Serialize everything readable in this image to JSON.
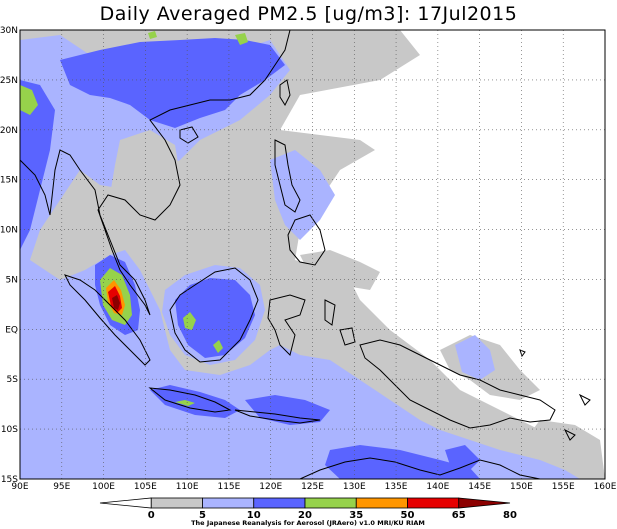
{
  "title": "Daily Averaged PM2.5 [ug/m3]: 17Jul2015",
  "map": {
    "lon_range": [
      90,
      160
    ],
    "lat_range": [
      -15,
      30
    ],
    "lon_ticks": [
      "90E",
      "95E",
      "100E",
      "105E",
      "110E",
      "115E",
      "120E",
      "125E",
      "130E",
      "135E",
      "140E",
      "145E",
      "150E",
      "155E",
      "160E"
    ],
    "lat_ticks": [
      "30N",
      "25N",
      "20N",
      "15N",
      "10N",
      "5N",
      "EQ",
      "5S",
      "10S",
      "15S"
    ],
    "grid": "dotted"
  },
  "colorbar": {
    "labels": [
      "0",
      "5",
      "10",
      "20",
      "35",
      "50",
      "65",
      "80"
    ],
    "colors": [
      "#ffffff",
      "#c8c8c8",
      "#aab4ff",
      "#5a64ff",
      "#96d24b",
      "#ff9600",
      "#e60000",
      "#8c0000"
    ],
    "credit": "The Japanese Reanalysis for Aerosol (JRAero) v1.0 MRI/KU RIAM"
  },
  "legend_colors": {
    "lt5": "#ffffff",
    "c5_10": "#c8c8c8",
    "c10_20": "#aab4ff",
    "c20_35": "#5a64ff",
    "c35_50": "#96d24b",
    "c50_65": "#ff9600",
    "c65_80": "#e60000",
    "gt80": "#8c0000"
  }
}
